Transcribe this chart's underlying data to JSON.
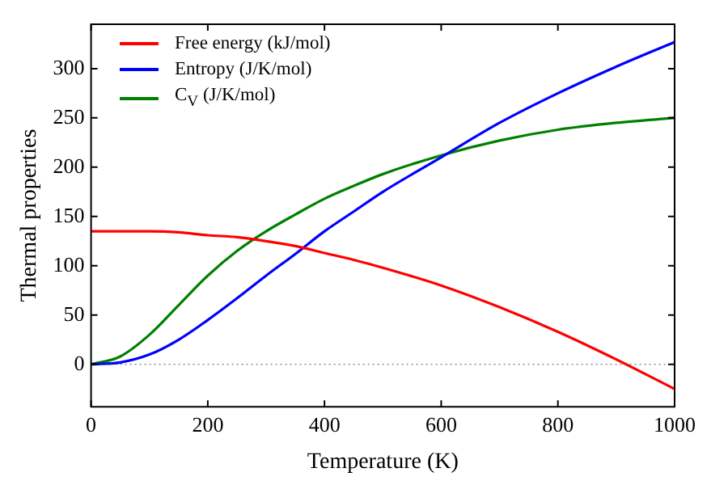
{
  "chart_data": {
    "type": "line",
    "xlabel": "Temperature (K)",
    "ylabel": "Thermal properties",
    "x": [
      0,
      50,
      100,
      150,
      200,
      250,
      300,
      350,
      400,
      450,
      500,
      600,
      700,
      800,
      900,
      1000
    ],
    "series": [
      {
        "name": "Free energy (kJ/mol)",
        "color": "#ff0000",
        "values": [
          135,
          135,
          135,
          134,
          131,
          129,
          125,
          120,
          113,
          106,
          98,
          80,
          58,
          33,
          5,
          -25
        ]
      },
      {
        "name": "Entropy (J/K/mol)",
        "color": "#0000ff",
        "values": [
          0,
          2,
          10,
          25,
          45,
          67,
          90,
          112,
          135,
          155,
          175,
          210,
          245,
          275,
          302,
          327
        ]
      },
      {
        "name": "C$_{V}$ (J/K/mol)",
        "color": "#008000",
        "values": [
          0,
          8,
          30,
          60,
          90,
          115,
          135,
          152,
          168,
          181,
          193,
          212,
          227,
          238,
          245,
          250
        ]
      }
    ],
    "xlim": [
      0,
      1000
    ],
    "xticks": [
      0,
      200,
      400,
      600,
      800,
      1000
    ],
    "ylim": [
      -43,
      345
    ],
    "yticks": [
      0,
      50,
      100,
      150,
      200,
      250,
      300
    ],
    "ref_lines": [
      {
        "axis": "y",
        "value": 0,
        "color": "#555555",
        "line_style": "dotted"
      }
    ],
    "legend": "top left",
    "grid": false,
    "marker": "none",
    "line_style": "solid"
  }
}
